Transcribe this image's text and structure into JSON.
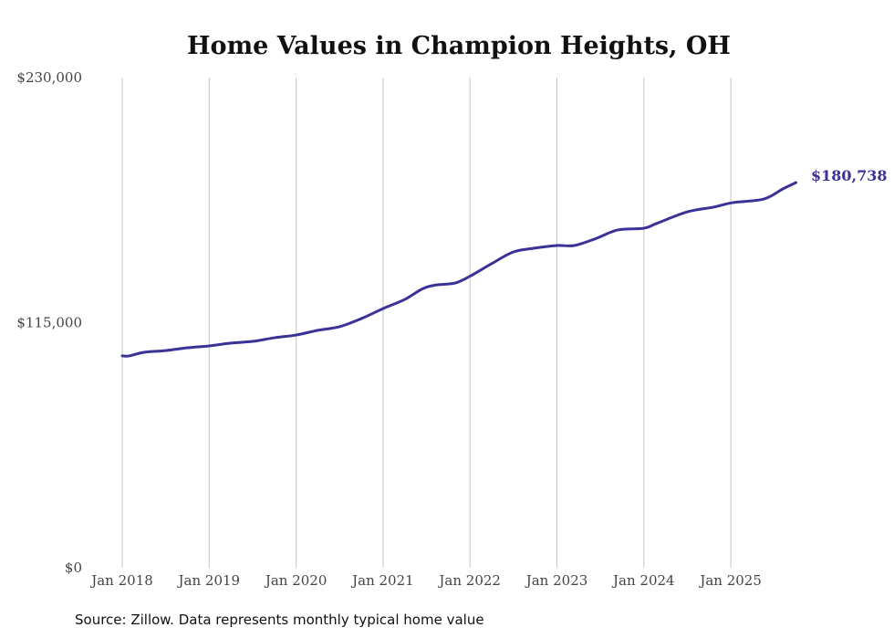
{
  "chart_data": {
    "type": "line",
    "title": "Home Values in Champion Heights, OH",
    "xlabel": "",
    "ylabel": "",
    "ylim": [
      0,
      230000
    ],
    "xlim": [
      2018,
      2025.75
    ],
    "y_ticks": [
      "$0",
      "$115,000",
      "$230,000"
    ],
    "y_tick_values": [
      0,
      115000,
      230000
    ],
    "x_ticks": [
      "Jan 2018",
      "Jan 2019",
      "Jan 2020",
      "Jan 2021",
      "Jan 2022",
      "Jan 2023",
      "Jan 2024",
      "Jan 2025"
    ],
    "x_tick_values": [
      2018,
      2019,
      2020,
      2021,
      2022,
      2023,
      2024,
      2025
    ],
    "grid": "vertical",
    "series": [
      {
        "name": "Typical home value",
        "color": "#3a3296",
        "x": [
          2018.0,
          2018.08,
          2018.25,
          2018.5,
          2018.75,
          2019.0,
          2019.25,
          2019.5,
          2019.75,
          2020.0,
          2020.25,
          2020.5,
          2020.75,
          2021.0,
          2021.25,
          2021.45,
          2021.6,
          2021.83,
          2022.0,
          2022.25,
          2022.5,
          2022.75,
          2023.0,
          2023.2,
          2023.45,
          2023.7,
          2024.0,
          2024.15,
          2024.5,
          2024.8,
          2025.02,
          2025.38,
          2025.6,
          2025.75
        ],
        "values": [
          99400,
          99400,
          101100,
          101900,
          103200,
          104100,
          105400,
          106200,
          107900,
          109200,
          111400,
          113100,
          116900,
          121600,
          125900,
          130800,
          132600,
          133600,
          136800,
          142700,
          148200,
          150000,
          151200,
          151200,
          154500,
          158500,
          159300,
          161600,
          167000,
          169200,
          171300,
          173000,
          177800,
          180738
        ]
      }
    ],
    "end_label": "$180,738",
    "source": "Source: Zillow. Data represents monthly typical home value"
  }
}
